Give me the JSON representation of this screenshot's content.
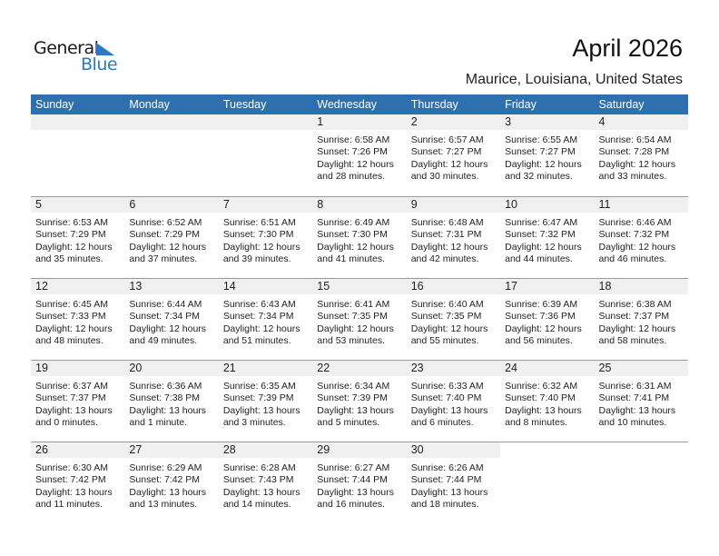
{
  "logo": {
    "line1": "General",
    "line2": "Blue"
  },
  "title": "April 2026",
  "location": "Maurice, Louisiana, United States",
  "colors": {
    "header": "#2e6fb0",
    "band": "#f0f0f0",
    "logo_blue": "#2b78c5"
  },
  "weekdays": [
    "Sunday",
    "Monday",
    "Tuesday",
    "Wednesday",
    "Thursday",
    "Friday",
    "Saturday"
  ],
  "weeks": [
    [
      null,
      null,
      null,
      {
        "day": "1",
        "sunrise": "Sunrise: 6:58 AM",
        "sunset": "Sunset: 7:26 PM",
        "daylight1": "Daylight: 12 hours",
        "daylight2": "and 28 minutes."
      },
      {
        "day": "2",
        "sunrise": "Sunrise: 6:57 AM",
        "sunset": "Sunset: 7:27 PM",
        "daylight1": "Daylight: 12 hours",
        "daylight2": "and 30 minutes."
      },
      {
        "day": "3",
        "sunrise": "Sunrise: 6:55 AM",
        "sunset": "Sunset: 7:27 PM",
        "daylight1": "Daylight: 12 hours",
        "daylight2": "and 32 minutes."
      },
      {
        "day": "4",
        "sunrise": "Sunrise: 6:54 AM",
        "sunset": "Sunset: 7:28 PM",
        "daylight1": "Daylight: 12 hours",
        "daylight2": "and 33 minutes."
      }
    ],
    [
      {
        "day": "5",
        "sunrise": "Sunrise: 6:53 AM",
        "sunset": "Sunset: 7:29 PM",
        "daylight1": "Daylight: 12 hours",
        "daylight2": "and 35 minutes."
      },
      {
        "day": "6",
        "sunrise": "Sunrise: 6:52 AM",
        "sunset": "Sunset: 7:29 PM",
        "daylight1": "Daylight: 12 hours",
        "daylight2": "and 37 minutes."
      },
      {
        "day": "7",
        "sunrise": "Sunrise: 6:51 AM",
        "sunset": "Sunset: 7:30 PM",
        "daylight1": "Daylight: 12 hours",
        "daylight2": "and 39 minutes."
      },
      {
        "day": "8",
        "sunrise": "Sunrise: 6:49 AM",
        "sunset": "Sunset: 7:30 PM",
        "daylight1": "Daylight: 12 hours",
        "daylight2": "and 41 minutes."
      },
      {
        "day": "9",
        "sunrise": "Sunrise: 6:48 AM",
        "sunset": "Sunset: 7:31 PM",
        "daylight1": "Daylight: 12 hours",
        "daylight2": "and 42 minutes."
      },
      {
        "day": "10",
        "sunrise": "Sunrise: 6:47 AM",
        "sunset": "Sunset: 7:32 PM",
        "daylight1": "Daylight: 12 hours",
        "daylight2": "and 44 minutes."
      },
      {
        "day": "11",
        "sunrise": "Sunrise: 6:46 AM",
        "sunset": "Sunset: 7:32 PM",
        "daylight1": "Daylight: 12 hours",
        "daylight2": "and 46 minutes."
      }
    ],
    [
      {
        "day": "12",
        "sunrise": "Sunrise: 6:45 AM",
        "sunset": "Sunset: 7:33 PM",
        "daylight1": "Daylight: 12 hours",
        "daylight2": "and 48 minutes."
      },
      {
        "day": "13",
        "sunrise": "Sunrise: 6:44 AM",
        "sunset": "Sunset: 7:34 PM",
        "daylight1": "Daylight: 12 hours",
        "daylight2": "and 49 minutes."
      },
      {
        "day": "14",
        "sunrise": "Sunrise: 6:43 AM",
        "sunset": "Sunset: 7:34 PM",
        "daylight1": "Daylight: 12 hours",
        "daylight2": "and 51 minutes."
      },
      {
        "day": "15",
        "sunrise": "Sunrise: 6:41 AM",
        "sunset": "Sunset: 7:35 PM",
        "daylight1": "Daylight: 12 hours",
        "daylight2": "and 53 minutes."
      },
      {
        "day": "16",
        "sunrise": "Sunrise: 6:40 AM",
        "sunset": "Sunset: 7:35 PM",
        "daylight1": "Daylight: 12 hours",
        "daylight2": "and 55 minutes."
      },
      {
        "day": "17",
        "sunrise": "Sunrise: 6:39 AM",
        "sunset": "Sunset: 7:36 PM",
        "daylight1": "Daylight: 12 hours",
        "daylight2": "and 56 minutes."
      },
      {
        "day": "18",
        "sunrise": "Sunrise: 6:38 AM",
        "sunset": "Sunset: 7:37 PM",
        "daylight1": "Daylight: 12 hours",
        "daylight2": "and 58 minutes."
      }
    ],
    [
      {
        "day": "19",
        "sunrise": "Sunrise: 6:37 AM",
        "sunset": "Sunset: 7:37 PM",
        "daylight1": "Daylight: 13 hours",
        "daylight2": "and 0 minutes."
      },
      {
        "day": "20",
        "sunrise": "Sunrise: 6:36 AM",
        "sunset": "Sunset: 7:38 PM",
        "daylight1": "Daylight: 13 hours",
        "daylight2": "and 1 minute."
      },
      {
        "day": "21",
        "sunrise": "Sunrise: 6:35 AM",
        "sunset": "Sunset: 7:39 PM",
        "daylight1": "Daylight: 13 hours",
        "daylight2": "and 3 minutes."
      },
      {
        "day": "22",
        "sunrise": "Sunrise: 6:34 AM",
        "sunset": "Sunset: 7:39 PM",
        "daylight1": "Daylight: 13 hours",
        "daylight2": "and 5 minutes."
      },
      {
        "day": "23",
        "sunrise": "Sunrise: 6:33 AM",
        "sunset": "Sunset: 7:40 PM",
        "daylight1": "Daylight: 13 hours",
        "daylight2": "and 6 minutes."
      },
      {
        "day": "24",
        "sunrise": "Sunrise: 6:32 AM",
        "sunset": "Sunset: 7:40 PM",
        "daylight1": "Daylight: 13 hours",
        "daylight2": "and 8 minutes."
      },
      {
        "day": "25",
        "sunrise": "Sunrise: 6:31 AM",
        "sunset": "Sunset: 7:41 PM",
        "daylight1": "Daylight: 13 hours",
        "daylight2": "and 10 minutes."
      }
    ],
    [
      {
        "day": "26",
        "sunrise": "Sunrise: 6:30 AM",
        "sunset": "Sunset: 7:42 PM",
        "daylight1": "Daylight: 13 hours",
        "daylight2": "and 11 minutes."
      },
      {
        "day": "27",
        "sunrise": "Sunrise: 6:29 AM",
        "sunset": "Sunset: 7:42 PM",
        "daylight1": "Daylight: 13 hours",
        "daylight2": "and 13 minutes."
      },
      {
        "day": "28",
        "sunrise": "Sunrise: 6:28 AM",
        "sunset": "Sunset: 7:43 PM",
        "daylight1": "Daylight: 13 hours",
        "daylight2": "and 14 minutes."
      },
      {
        "day": "29",
        "sunrise": "Sunrise: 6:27 AM",
        "sunset": "Sunset: 7:44 PM",
        "daylight1": "Daylight: 13 hours",
        "daylight2": "and 16 minutes."
      },
      {
        "day": "30",
        "sunrise": "Sunrise: 6:26 AM",
        "sunset": "Sunset: 7:44 PM",
        "daylight1": "Daylight: 13 hours",
        "daylight2": "and 18 minutes."
      },
      null,
      null
    ]
  ]
}
